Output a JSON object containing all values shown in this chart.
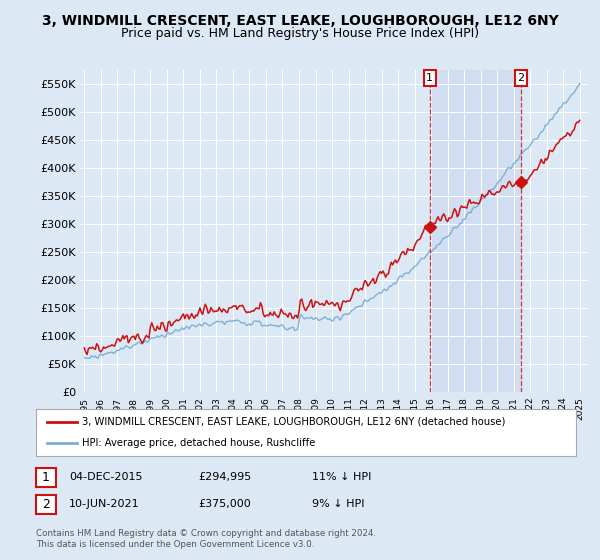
{
  "title": "3, WINDMILL CRESCENT, EAST LEAKE, LOUGHBOROUGH, LE12 6NY",
  "subtitle": "Price paid vs. HM Land Registry's House Price Index (HPI)",
  "ylim": [
    0,
    575000
  ],
  "yticks": [
    0,
    50000,
    100000,
    150000,
    200000,
    250000,
    300000,
    350000,
    400000,
    450000,
    500000,
    550000
  ],
  "ytick_labels": [
    "£0",
    "£50K",
    "£100K",
    "£150K",
    "£200K",
    "£250K",
    "£300K",
    "£350K",
    "£400K",
    "£450K",
    "£500K",
    "£550K"
  ],
  "background_color": "#dde8f5",
  "plot_bg_color": "#dde8f5",
  "hpi_color": "#7aadd4",
  "price_color": "#cc1111",
  "marker1_year": 2015.92,
  "marker2_year": 2021.45,
  "marker1_price": 294995,
  "marker2_price": 375000,
  "legend_label1": "3, WINDMILL CRESCENT, EAST LEAKE, LOUGHBOROUGH, LE12 6NY (detached house)",
  "legend_label2": "HPI: Average price, detached house, Rushcliffe",
  "footer": "Contains HM Land Registry data © Crown copyright and database right 2024.\nThis data is licensed under the Open Government Licence v3.0.",
  "title_fontsize": 10,
  "subtitle_fontsize": 9,
  "shade_color": "#ccd9ee",
  "xlim_left": 1994.8,
  "xlim_right": 2025.5
}
